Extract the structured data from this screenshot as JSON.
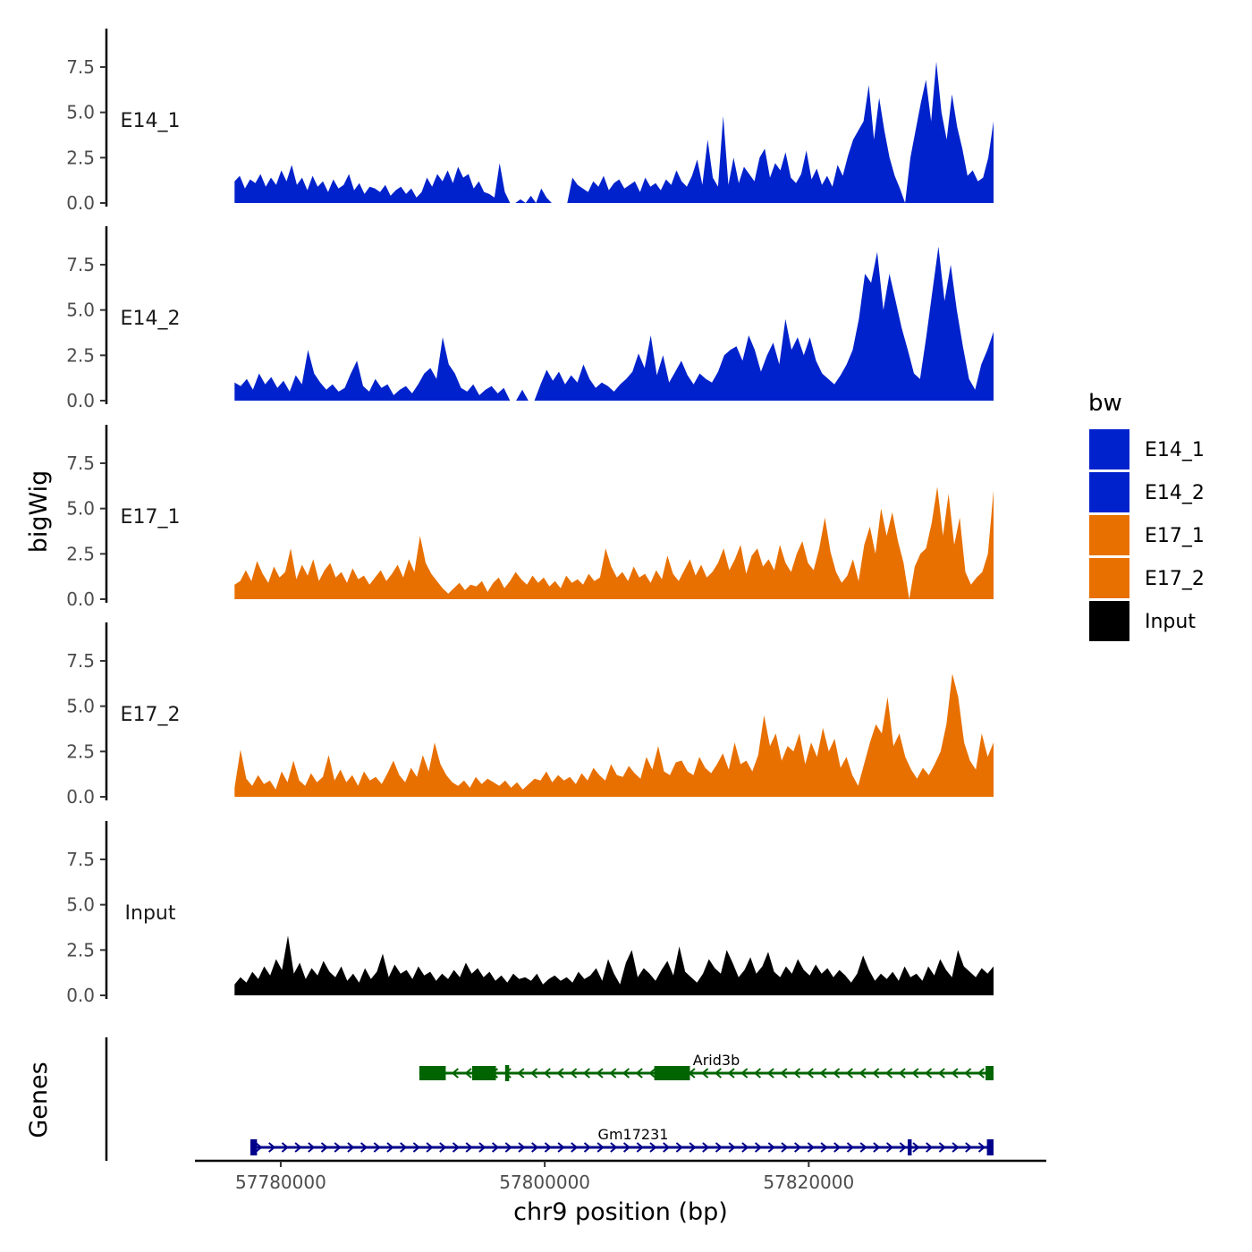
{
  "chart_data": {
    "type": "area",
    "ylabel": "bigWig",
    "genes_label": "Genes",
    "xlabel": "chr9 position (bp)",
    "xlim": [
      57773500,
      57838000
    ],
    "ylim": [
      0,
      9.6
    ],
    "y_ticks": [
      "0.0",
      "2.5",
      "5.0",
      "7.5"
    ],
    "y_tick_values": [
      0,
      2.5,
      5.0,
      7.5
    ],
    "x_ticks": [
      "57780000",
      "57800000",
      "57820000"
    ],
    "x_tick_values": [
      57780000,
      57800000,
      57820000
    ],
    "legend": {
      "title": "bw",
      "entries": [
        "E14_1",
        "E14_2",
        "E17_1",
        "E17_2",
        "Input"
      ]
    },
    "colors": {
      "E14_1": "#0022CC",
      "E14_2": "#0022CC",
      "E17_1": "#E87000",
      "E17_2": "#E87000",
      "Input": "#000000",
      "gene_minus": "#006400",
      "gene_plus": "#00008B"
    },
    "signal_range": [
      57776500,
      57834000
    ],
    "series": [
      {
        "name": "E14_1",
        "values": [
          1.2,
          1.5,
          0.8,
          1.3,
          1.1,
          1.6,
          0.9,
          1.4,
          1.0,
          1.8,
          1.2,
          2.1,
          1.0,
          1.4,
          0.7,
          1.5,
          0.9,
          1.2,
          0.6,
          1.3,
          0.8,
          1.0,
          1.6,
          0.7,
          1.1,
          0.5,
          0.9,
          0.8,
          0.6,
          1.0,
          0.4,
          0.7,
          0.9,
          0.5,
          0.8,
          0.3,
          0.6,
          1.4,
          0.9,
          1.6,
          1.2,
          1.8,
          1.1,
          2.0,
          1.4,
          1.6,
          0.8,
          1.2,
          0.6,
          0.5,
          0.3,
          2.2,
          0.6,
          0.0,
          0.0,
          0.2,
          0.0,
          0.4,
          0.0,
          0.8,
          0.3,
          0.0,
          0.0,
          0.0,
          0.0,
          1.4,
          1.0,
          0.8,
          0.6,
          1.2,
          0.9,
          1.5,
          0.7,
          1.1,
          1.3,
          0.8,
          1.0,
          1.2,
          0.6,
          1.4,
          0.9,
          1.1,
          0.7,
          1.3,
          1.0,
          1.8,
          1.2,
          0.9,
          1.5,
          2.4,
          1.0,
          3.5,
          1.4,
          0.9,
          4.8,
          1.0,
          2.5,
          1.1,
          2.0,
          1.6,
          1.2,
          2.5,
          3.0,
          1.4,
          2.2,
          1.8,
          2.8,
          1.4,
          1.1,
          1.6,
          2.9,
          1.3,
          1.9,
          1.0,
          1.5,
          0.9,
          2.1,
          1.5,
          2.6,
          3.5,
          4.0,
          4.5,
          6.5,
          3.5,
          5.8,
          4.0,
          2.5,
          1.5,
          0.8,
          0.0,
          2.5,
          4.0,
          5.5,
          6.8,
          4.5,
          7.8,
          5.0,
          3.5,
          6.0,
          4.2,
          3.0,
          1.5,
          1.8,
          1.2,
          1.4,
          2.5,
          4.5
        ]
      },
      {
        "name": "E14_2",
        "values": [
          1.0,
          0.8,
          1.2,
          0.6,
          1.5,
          0.9,
          1.3,
          0.7,
          1.1,
          0.5,
          1.4,
          0.9,
          2.8,
          1.5,
          1.0,
          0.6,
          0.9,
          0.5,
          0.7,
          1.5,
          2.2,
          0.8,
          0.5,
          1.2,
          0.7,
          0.9,
          0.3,
          0.6,
          0.8,
          0.4,
          0.9,
          1.5,
          1.8,
          1.2,
          3.5,
          2.0,
          1.5,
          0.7,
          0.5,
          0.9,
          0.3,
          0.6,
          0.8,
          0.4,
          0.7,
          0.0,
          0.0,
          0.6,
          0.0,
          0.0,
          0.9,
          1.7,
          1.1,
          1.6,
          0.9,
          1.4,
          1.0,
          2.0,
          1.2,
          0.7,
          1.0,
          0.8,
          0.5,
          0.9,
          1.2,
          1.6,
          2.6,
          1.8,
          3.6,
          1.4,
          2.5,
          1.0,
          1.6,
          2.2,
          1.4,
          0.9,
          1.5,
          1.2,
          1.0,
          1.6,
          2.5,
          2.8,
          3.0,
          2.2,
          3.6,
          2.8,
          1.6,
          2.5,
          3.2,
          2.0,
          4.5,
          2.8,
          3.5,
          2.5,
          3.5,
          2.2,
          1.5,
          1.2,
          0.9,
          1.4,
          2.0,
          2.8,
          4.5,
          7.0,
          6.5,
          8.2,
          5.0,
          7.0,
          5.5,
          4.0,
          2.8,
          1.5,
          1.2,
          3.5,
          6.0,
          8.5,
          5.5,
          7.5,
          5.0,
          3.0,
          1.2,
          0.6,
          2.0,
          2.8,
          3.8
        ]
      },
      {
        "name": "E17_1",
        "values": [
          0.8,
          1.0,
          1.6,
          1.0,
          2.1,
          1.4,
          0.9,
          1.8,
          1.2,
          1.5,
          2.8,
          1.1,
          1.9,
          1.3,
          2.2,
          1.0,
          1.6,
          2.0,
          1.2,
          1.5,
          0.9,
          1.7,
          1.1,
          1.3,
          0.8,
          1.2,
          1.6,
          1.0,
          1.4,
          1.9,
          1.2,
          2.2,
          1.5,
          3.5,
          2.0,
          1.4,
          1.0,
          0.6,
          0.3,
          0.6,
          0.9,
          0.5,
          0.8,
          0.7,
          1.0,
          0.4,
          0.9,
          1.2,
          0.6,
          1.0,
          1.5,
          1.1,
          0.8,
          1.3,
          0.9,
          1.2,
          0.7,
          1.0,
          0.6,
          1.3,
          0.9,
          1.1,
          0.8,
          1.4,
          1.0,
          1.2,
          2.8,
          1.8,
          1.2,
          1.5,
          1.0,
          1.8,
          1.2,
          1.4,
          0.9,
          1.6,
          1.1,
          2.4,
          1.4,
          1.0,
          1.6,
          2.2,
          1.3,
          1.9,
          1.2,
          1.5,
          2.0,
          2.8,
          1.6,
          2.2,
          3.0,
          1.4,
          2.4,
          2.8,
          1.8,
          2.2,
          1.6,
          3.0,
          2.0,
          1.5,
          2.5,
          3.2,
          2.0,
          1.6,
          2.8,
          4.5,
          2.6,
          1.5,
          0.9,
          1.3,
          2.2,
          1.0,
          3.0,
          4.0,
          2.5,
          5.0,
          3.5,
          4.8,
          3.2,
          2.0,
          0.0,
          1.8,
          2.5,
          2.8,
          4.2,
          6.2,
          3.5,
          5.8,
          3.0,
          4.5,
          1.5,
          0.8,
          1.2,
          1.5,
          2.5,
          6.0
        ]
      },
      {
        "name": "E17_2",
        "values": [
          0.5,
          2.6,
          1.0,
          0.6,
          1.2,
          0.7,
          0.9,
          0.4,
          1.4,
          0.8,
          2.0,
          0.9,
          0.6,
          1.3,
          0.8,
          1.1,
          2.3,
          0.9,
          1.5,
          0.8,
          1.2,
          0.6,
          1.4,
          0.9,
          1.1,
          0.7,
          1.3,
          2.0,
          1.2,
          0.8,
          1.6,
          1.1,
          2.3,
          1.4,
          3.0,
          1.8,
          1.2,
          0.8,
          0.6,
          0.9,
          0.5,
          1.1,
          0.7,
          1.0,
          0.8,
          0.6,
          0.9,
          0.5,
          0.8,
          0.4,
          0.7,
          1.0,
          0.9,
          1.4,
          0.8,
          1.2,
          0.9,
          1.1,
          0.7,
          1.3,
          0.9,
          1.6,
          1.2,
          0.9,
          1.8,
          1.2,
          1.1,
          1.7,
          1.3,
          1.0,
          2.2,
          1.5,
          2.8,
          1.4,
          1.2,
          1.9,
          2.0,
          1.4,
          1.2,
          2.2,
          1.6,
          1.3,
          1.8,
          2.4,
          1.5,
          3.0,
          1.8,
          2.0,
          1.4,
          2.3,
          4.5,
          2.8,
          3.5,
          2.0,
          2.8,
          2.5,
          3.5,
          1.8,
          3.0,
          2.2,
          3.8,
          2.5,
          3.2,
          1.6,
          2.2,
          1.2,
          0.6,
          1.8,
          3.0,
          4.0,
          3.5,
          5.5,
          2.8,
          3.5,
          2.2,
          1.5,
          1.0,
          1.6,
          1.2,
          1.8,
          2.5,
          4.0,
          6.8,
          5.5,
          3.0,
          2.0,
          1.5,
          3.5,
          2.2,
          3.0
        ]
      },
      {
        "name": "Input",
        "values": [
          0.6,
          1.0,
          0.7,
          1.3,
          0.9,
          1.6,
          1.1,
          2.0,
          1.4,
          3.3,
          1.2,
          1.8,
          0.9,
          1.5,
          1.1,
          1.9,
          1.3,
          1.0,
          1.6,
          0.8,
          1.2,
          0.7,
          1.5,
          0.9,
          1.3,
          2.3,
          1.0,
          1.7,
          1.2,
          1.4,
          0.9,
          1.6,
          1.1,
          1.3,
          0.8,
          1.2,
          0.9,
          1.4,
          1.0,
          1.8,
          1.2,
          1.5,
          1.0,
          1.3,
          0.8,
          1.1,
          0.7,
          1.2,
          0.9,
          1.0,
          0.8,
          1.2,
          0.6,
          0.9,
          1.1,
          0.8,
          1.0,
          0.7,
          1.3,
          0.9,
          1.1,
          1.5,
          0.8,
          2.0,
          1.2,
          0.6,
          1.8,
          2.5,
          1.0,
          1.5,
          1.2,
          0.8,
          1.4,
          1.9,
          1.1,
          2.7,
          1.3,
          1.0,
          0.7,
          1.2,
          2.0,
          1.5,
          1.2,
          2.5,
          1.8,
          1.0,
          1.4,
          2.1,
          1.2,
          1.6,
          2.4,
          1.3,
          1.0,
          1.6,
          1.2,
          2.0,
          1.4,
          1.1,
          1.7,
          1.2,
          1.5,
          1.0,
          1.4,
          1.1,
          0.7,
          1.2,
          2.2,
          1.4,
          0.8,
          1.2,
          0.9,
          1.3,
          0.8,
          1.6,
          1.0,
          1.2,
          0.8,
          1.6,
          1.1,
          2.0,
          1.4,
          1.0,
          2.5,
          1.6,
          1.3,
          1.0,
          1.5,
          1.2,
          1.6
        ]
      }
    ],
    "genes": [
      {
        "name": "Arid3b",
        "strand": "-",
        "start": 57790500,
        "end": 57834000,
        "exons": [
          [
            57790500,
            57792500
          ],
          [
            57794500,
            57796300
          ],
          [
            57797000,
            57797300
          ],
          [
            57808300,
            57811000
          ],
          [
            57833400,
            57834000
          ]
        ]
      },
      {
        "name": "Gm17231",
        "strand": "+",
        "start": 57777700,
        "end": 57834000,
        "exons": [
          [
            57777700,
            57778200
          ],
          [
            57827500,
            57827800
          ],
          [
            57833500,
            57834000
          ]
        ]
      }
    ]
  }
}
